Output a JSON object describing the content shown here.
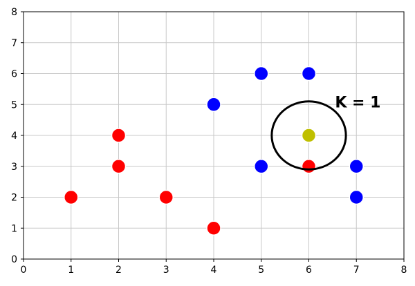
{
  "chart_data": {
    "type": "scatter",
    "xlim": [
      0,
      8
    ],
    "ylim": [
      0,
      8
    ],
    "x_ticks": [
      0,
      1,
      2,
      3,
      4,
      5,
      6,
      7,
      8
    ],
    "y_ticks": [
      0,
      1,
      2,
      3,
      4,
      5,
      6,
      7,
      8
    ],
    "grid": true,
    "series": [
      {
        "color": "#ff0000",
        "points": [
          [
            1,
            2
          ],
          [
            2,
            3
          ],
          [
            2,
            4
          ],
          [
            3,
            2
          ],
          [
            4,
            1
          ],
          [
            6,
            3
          ]
        ]
      },
      {
        "color": "#0000ff",
        "points": [
          [
            4,
            5
          ],
          [
            5,
            6
          ],
          [
            6,
            6
          ],
          [
            5,
            3
          ],
          [
            7,
            3
          ],
          [
            7,
            2
          ]
        ]
      },
      {
        "color": "#bfbf00",
        "points": [
          [
            6,
            4
          ]
        ]
      }
    ],
    "circle": {
      "center": [
        6,
        4
      ],
      "rx": 0.78,
      "ry": 1.1,
      "color": "#000000"
    },
    "annotation": {
      "text": "K = 1",
      "x": 6.55,
      "y": 5.0
    }
  }
}
